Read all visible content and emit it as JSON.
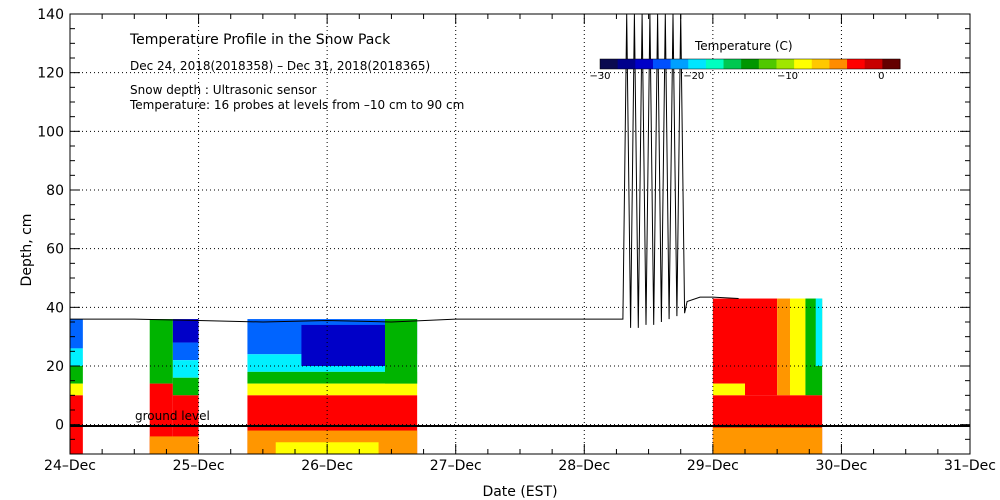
{
  "chart_data": {
    "type": "heatmap",
    "title": "Temperature Profile in the Snow Pack",
    "subtitle": "Dec 24, 2018(2018358) – Dec 31, 2018(2018365)",
    "notes": [
      "Snow depth : Ultrasonic sensor",
      "Temperature: 16 probes at levels from –10 cm to 90 cm"
    ],
    "xlabel": "Date (EST)",
    "ylabel": "Depth, cm",
    "x_ticks": [
      "24–Dec",
      "25–Dec",
      "26–Dec",
      "27–Dec",
      "28–Dec",
      "29–Dec",
      "30–Dec",
      "31–Dec"
    ],
    "y_ticks": [
      "0",
      "20",
      "40",
      "60",
      "80",
      "100",
      "120",
      "140"
    ],
    "xlim": [
      0,
      7
    ],
    "ylim": [
      -10,
      140
    ],
    "grid": true,
    "ground_level_label": "ground level",
    "colorbar": {
      "label": "Temperature (C)",
      "range": [
        -30,
        2
      ],
      "ticks": [
        "−30",
        "−20",
        "−10",
        "0"
      ],
      "colors": [
        "#0a0a50",
        "#00008c",
        "#0000c8",
        "#0050ff",
        "#00a0ff",
        "#00e6ff",
        "#00ffc0",
        "#00c850",
        "#009600",
        "#50c800",
        "#a0e600",
        "#ffff00",
        "#ffc800",
        "#ff8c00",
        "#ff0000",
        "#c80000",
        "#640000"
      ]
    },
    "snow_depth": [
      [
        0.0,
        36
      ],
      [
        0.5,
        36
      ],
      [
        1.0,
        35.5
      ],
      [
        1.5,
        35
      ],
      [
        2.0,
        35.5
      ],
      [
        2.5,
        35
      ],
      [
        3.0,
        36
      ],
      [
        3.5,
        36
      ],
      [
        4.0,
        36
      ],
      [
        4.3,
        36
      ],
      [
        4.33,
        140
      ],
      [
        4.36,
        33
      ],
      [
        4.39,
        140
      ],
      [
        4.42,
        33
      ],
      [
        4.45,
        140
      ],
      [
        4.48,
        34
      ],
      [
        4.51,
        140
      ],
      [
        4.54,
        34
      ],
      [
        4.57,
        140
      ],
      [
        4.6,
        35
      ],
      [
        4.63,
        140
      ],
      [
        4.66,
        36
      ],
      [
        4.69,
        140
      ],
      [
        4.72,
        37
      ],
      [
        4.75,
        140
      ],
      [
        4.78,
        38
      ],
      [
        4.8,
        42
      ],
      [
        4.9,
        43.5
      ],
      [
        5.0,
        43.5
      ],
      [
        5.2,
        43
      ]
    ]
  },
  "colors": {
    "red": "#ff0000",
    "orange": "#ff9600",
    "yellow": "#ffff00",
    "green": "#00b400",
    "cyan": "#00f0ff",
    "blue": "#0064ff",
    "darkblue": "#0000c8"
  }
}
